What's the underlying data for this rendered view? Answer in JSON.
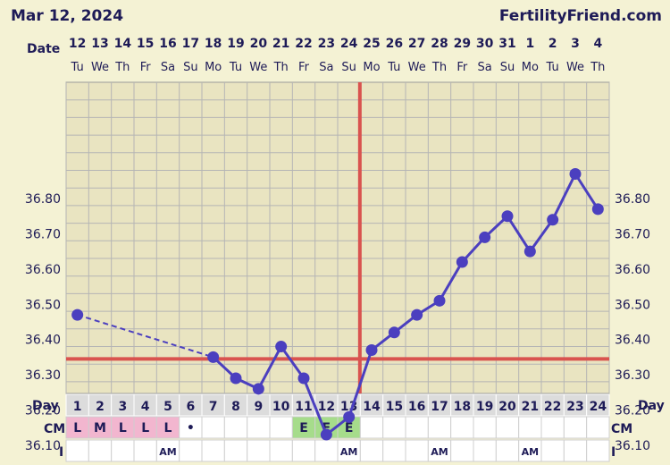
{
  "header": {
    "date": "Mar 12, 2024",
    "brand": "FertilityFriend.com"
  },
  "labels": {
    "date": "Date",
    "day": "Day",
    "cm": "CM",
    "i": "I"
  },
  "colors": {
    "background": "#f4f2d4",
    "grid_bg": "#e9e4c1",
    "grid": "#b5b5b5",
    "line": "#4b3fbf",
    "coverline": "#d9534f",
    "cm_L": "#f2b6cf",
    "cm_E": "#a6dc8b",
    "text": "#1e1b57"
  },
  "chart_data": {
    "type": "line",
    "title": "",
    "xlabel": "Day",
    "ylabel": "",
    "ylim": [
      36.0,
      36.9
    ],
    "y_ticks": [
      "36.10",
      "36.20",
      "36.30",
      "36.40",
      "36.50",
      "36.60",
      "36.70",
      "36.80"
    ],
    "calendar_dates": [
      "12",
      "13",
      "14",
      "15",
      "16",
      "17",
      "18",
      "19",
      "20",
      "21",
      "22",
      "23",
      "24",
      "25",
      "26",
      "27",
      "28",
      "29",
      "30",
      "31",
      "1",
      "2",
      "3",
      "4"
    ],
    "weekdays": [
      "Tu",
      "We",
      "Th",
      "Fr",
      "Sa",
      "Su",
      "Mo",
      "Tu",
      "We",
      "Th",
      "Fr",
      "Sa",
      "Su",
      "Mo",
      "Tu",
      "We",
      "Th",
      "Fr",
      "Sa",
      "Su",
      "Mo",
      "Tu",
      "We",
      "Th"
    ],
    "cycle_days": [
      "1",
      "2",
      "3",
      "4",
      "5",
      "6",
      "7",
      "8",
      "9",
      "10",
      "11",
      "12",
      "13",
      "14",
      "15",
      "16",
      "17",
      "18",
      "19",
      "20",
      "21",
      "22",
      "23",
      "24"
    ],
    "series": [
      {
        "values": [
          36.47,
          null,
          null,
          null,
          null,
          null,
          36.35,
          36.29,
          36.26,
          36.38,
          36.29,
          36.13,
          36.18,
          36.37,
          36.42,
          36.47,
          36.51,
          36.62,
          36.69,
          36.75,
          36.65,
          36.74,
          36.87,
          36.77
        ]
      }
    ],
    "coverline": 36.345,
    "ovulation_day": 13,
    "cm": [
      "L",
      "M",
      "L",
      "L",
      "L",
      "•",
      "",
      "",
      "",
      "",
      "E",
      "E",
      "E",
      "",
      "",
      "",
      "",
      "",
      "",
      "",
      "",
      "",
      "",
      ""
    ],
    "intercourse": [
      "",
      "",
      "",
      "",
      "AM",
      "",
      "",
      "",
      "",
      "",
      "",
      "",
      "AM",
      "",
      "",
      "",
      "AM",
      "",
      "",
      "",
      "AM",
      "",
      "",
      ""
    ]
  }
}
